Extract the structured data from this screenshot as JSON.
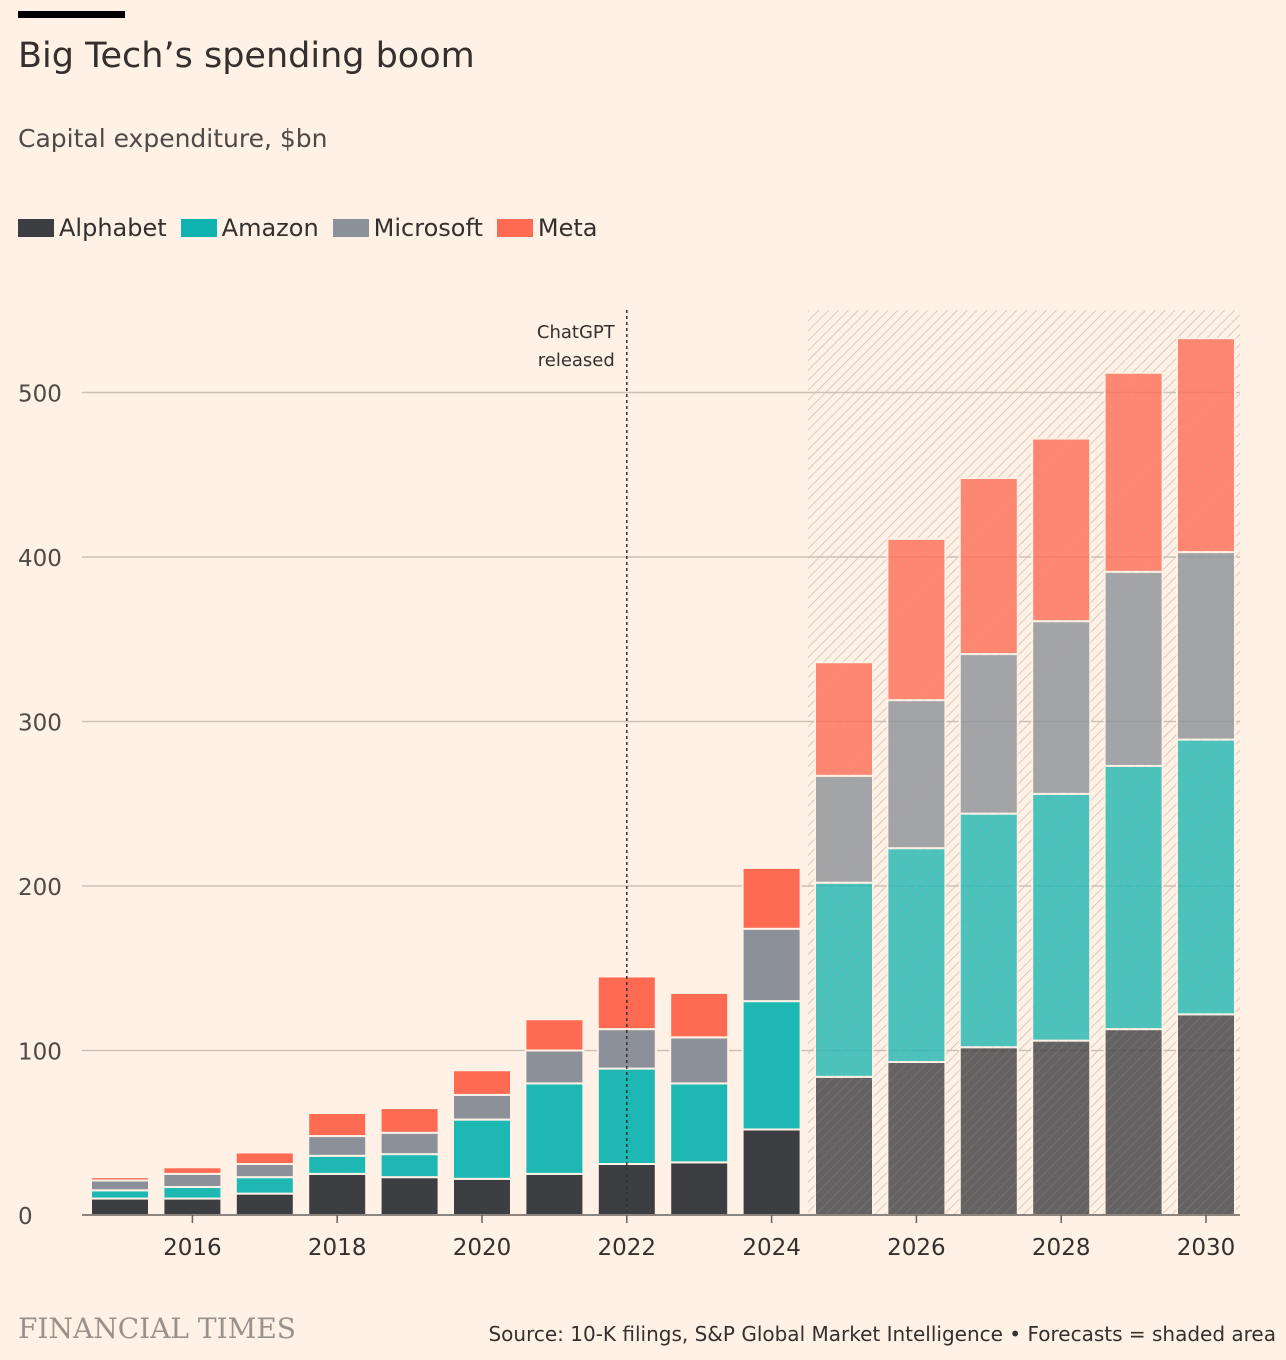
{
  "header": {
    "title": "Big Tech’s spending boom",
    "subtitle": "Capital expenditure, $bn"
  },
  "footer": {
    "logo": "FINANCIAL TIMES",
    "source": "Source: 10-K filings, S&P Global Market Intelligence • Forecasts = shaded area"
  },
  "chart_data": {
    "type": "bar",
    "stacked": true,
    "title": "Big Tech’s spending boom",
    "subtitle": "Capital expenditure, $bn",
    "categories": [
      2015,
      2016,
      2017,
      2018,
      2019,
      2020,
      2021,
      2022,
      2023,
      2024,
      2025,
      2026,
      2027,
      2028,
      2029,
      2030
    ],
    "series": [
      {
        "name": "Alphabet",
        "color": "#3d3e42",
        "values": [
          10,
          10,
          13,
          25,
          23,
          22,
          25,
          31,
          32,
          52,
          84,
          93,
          102,
          106,
          113,
          122
        ]
      },
      {
        "name": "Amazon",
        "color": "#1db8b3",
        "values": [
          5,
          7,
          10,
          11,
          14,
          36,
          55,
          58,
          48,
          78,
          118,
          130,
          142,
          150,
          160,
          167
        ]
      },
      {
        "name": "Microsoft",
        "color": "#8c9199",
        "values": [
          6,
          8,
          8,
          12,
          13,
          15,
          20,
          24,
          28,
          44,
          65,
          90,
          97,
          105,
          118,
          114
        ]
      },
      {
        "name": "Meta",
        "color": "#ff6b52",
        "values": [
          2,
          4,
          7,
          14,
          15,
          15,
          19,
          32,
          27,
          37,
          69,
          98,
          107,
          111,
          121,
          130
        ]
      }
    ],
    "xticks": [
      2016,
      2018,
      2020,
      2022,
      2024,
      2026,
      2028,
      2030
    ],
    "yticks": [
      0,
      100,
      200,
      300,
      400,
      500
    ],
    "ylim": [
      0,
      550
    ],
    "grid": true,
    "legend": "top-left",
    "forecast_from": 2025,
    "annotation": {
      "x": 2022,
      "lines": [
        "ChatGPT",
        "released"
      ]
    }
  }
}
